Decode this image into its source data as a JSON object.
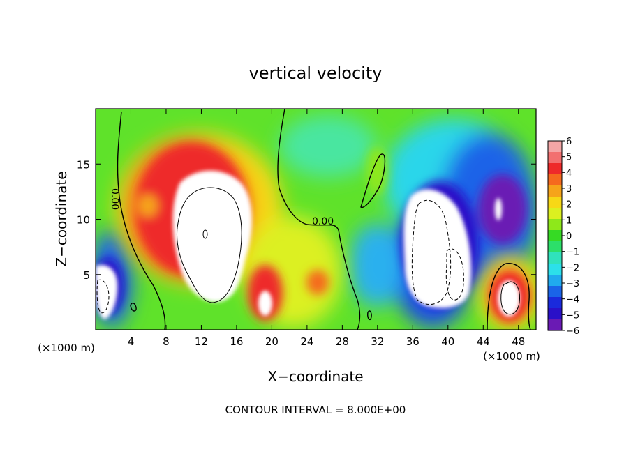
{
  "chart_data": {
    "type": "heatmap",
    "title": "vertical velocity",
    "xlabel": "X−coordinate",
    "ylabel": "Z−coordinate",
    "x_unit": "(×1000 m)",
    "x_unit_right": "(×1000 m)",
    "footer": "CONTOUR INTERVAL = 8.000E+00",
    "xlim": [
      0,
      50
    ],
    "ylim": [
      0,
      20
    ],
    "xticks": [
      4,
      8,
      12,
      16,
      20,
      24,
      28,
      32,
      36,
      40,
      44,
      48
    ],
    "yticks": [
      5,
      10,
      15
    ],
    "contour_labels": [
      "0.00",
      "0.00"
    ],
    "colorbar": {
      "ticks": [
        "6",
        "5",
        "4",
        "3",
        "2",
        "1",
        "0",
        "−1",
        "−2",
        "−3",
        "−4",
        "−5",
        "−6"
      ],
      "range": [
        -6,
        6
      ],
      "colors": [
        "#f4a6a6",
        "#f27070",
        "#ee2a2a",
        "#f56a1e",
        "#f6a41a",
        "#f7d816",
        "#dcf020",
        "#8ee81a",
        "#36da24",
        "#2cdf6a",
        "#30e2bc",
        "#2ce0ea",
        "#20aaee",
        "#1a64e8",
        "#1a2adc",
        "#2a10c8",
        "#6a1ab4"
      ]
    },
    "features": [
      {
        "x": 12,
        "z": 10,
        "value": 7,
        "kind": "updraft"
      },
      {
        "x": 39,
        "z": 8,
        "value": -7,
        "kind": "downdraft"
      },
      {
        "x": 1.5,
        "z": 4,
        "value": -7,
        "kind": "downdraft"
      },
      {
        "x": 46.5,
        "z": 3,
        "value": 7,
        "kind": "updraft"
      },
      {
        "x": 19.5,
        "z": 2.5,
        "value": 7,
        "kind": "updraft"
      },
      {
        "x": 47,
        "z": 10.5,
        "value": -7,
        "kind": "downdraft"
      }
    ]
  }
}
